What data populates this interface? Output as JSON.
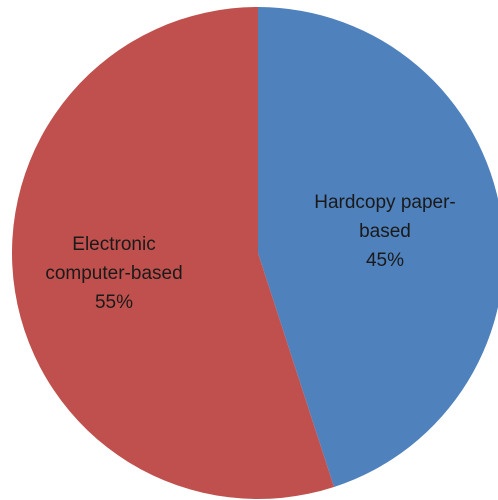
{
  "chart_data": {
    "type": "pie",
    "title": "",
    "legend": "none",
    "slices": [
      {
        "label_lines": [
          "Hardcopy paper-",
          "based"
        ],
        "value": 45,
        "value_label": "45%",
        "color": "#4F81BD"
      },
      {
        "label_lines": [
          "Electronic",
          "computer-based"
        ],
        "value": 55,
        "value_label": "55%",
        "color": "#C0504D"
      }
    ]
  }
}
